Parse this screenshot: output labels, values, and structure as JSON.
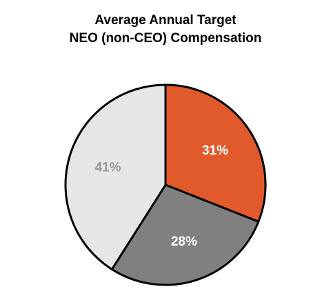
{
  "chart_data": {
    "type": "pie",
    "title": "Average Annual Target",
    "subtitle": "NEO (non-CEO) Compensation",
    "values": [
      31,
      28,
      41
    ],
    "value_labels": [
      "31%",
      "28%",
      "41%"
    ],
    "colors": [
      "#e05a2b",
      "#808080",
      "#e6e6e6"
    ],
    "start_angle": 0,
    "direction": "clockwise"
  }
}
